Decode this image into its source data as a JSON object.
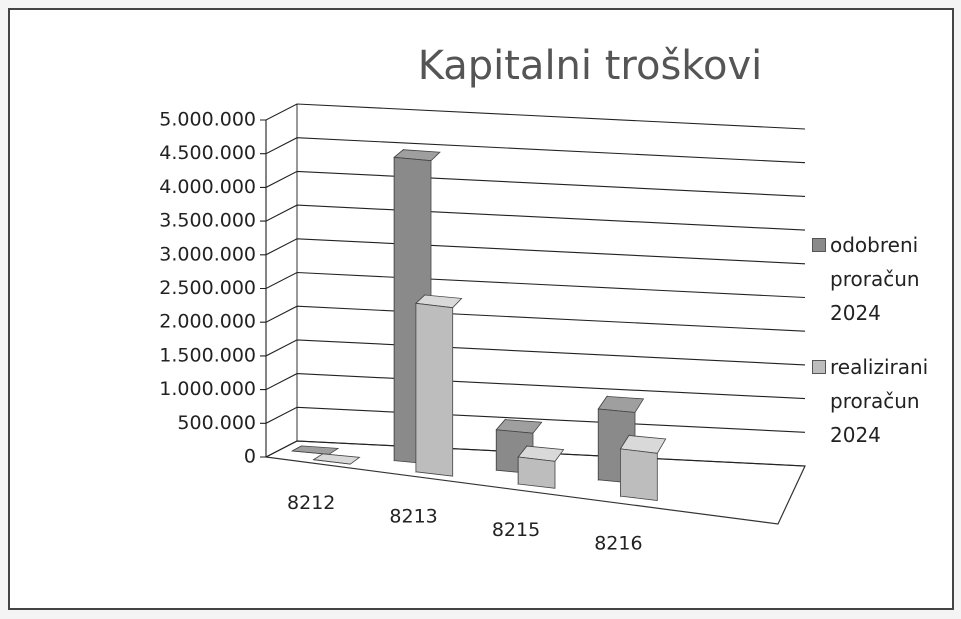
{
  "chart_data": {
    "type": "bar3d",
    "title": "Kapitalni troškovi",
    "categories": [
      "8212",
      "8213",
      "8215",
      "8216"
    ],
    "series": [
      {
        "name": "odobreni proračun 2024",
        "color": "#8a8a8a",
        "values": [
          0,
          4500000,
          600000,
          1050000
        ]
      },
      {
        "name": "realizirani proračun 2024",
        "color": "#bdbdbd",
        "values": [
          0,
          2500000,
          400000,
          700000
        ]
      }
    ],
    "ylim": [
      0,
      5000000
    ],
    "yticks": [
      0,
      {
        "value": 500000,
        "label": "500.000"
      },
      {
        "value": 1000000,
        "label": "1.000.000"
      },
      {
        "value": 1500000,
        "label": "1.500.000"
      },
      {
        "value": 2000000,
        "label": "2.000.000"
      },
      {
        "value": 2500000,
        "label": "2.500.000"
      },
      {
        "value": 3000000,
        "label": "3.000.000"
      },
      {
        "value": 3500000,
        "label": "3.500.000"
      },
      {
        "value": 4000000,
        "label": "4.000.000"
      },
      {
        "value": 4500000,
        "label": "4.500.000"
      },
      {
        "value": 5000000,
        "label": "5.000.000"
      }
    ],
    "grid": true,
    "legend": "right"
  }
}
